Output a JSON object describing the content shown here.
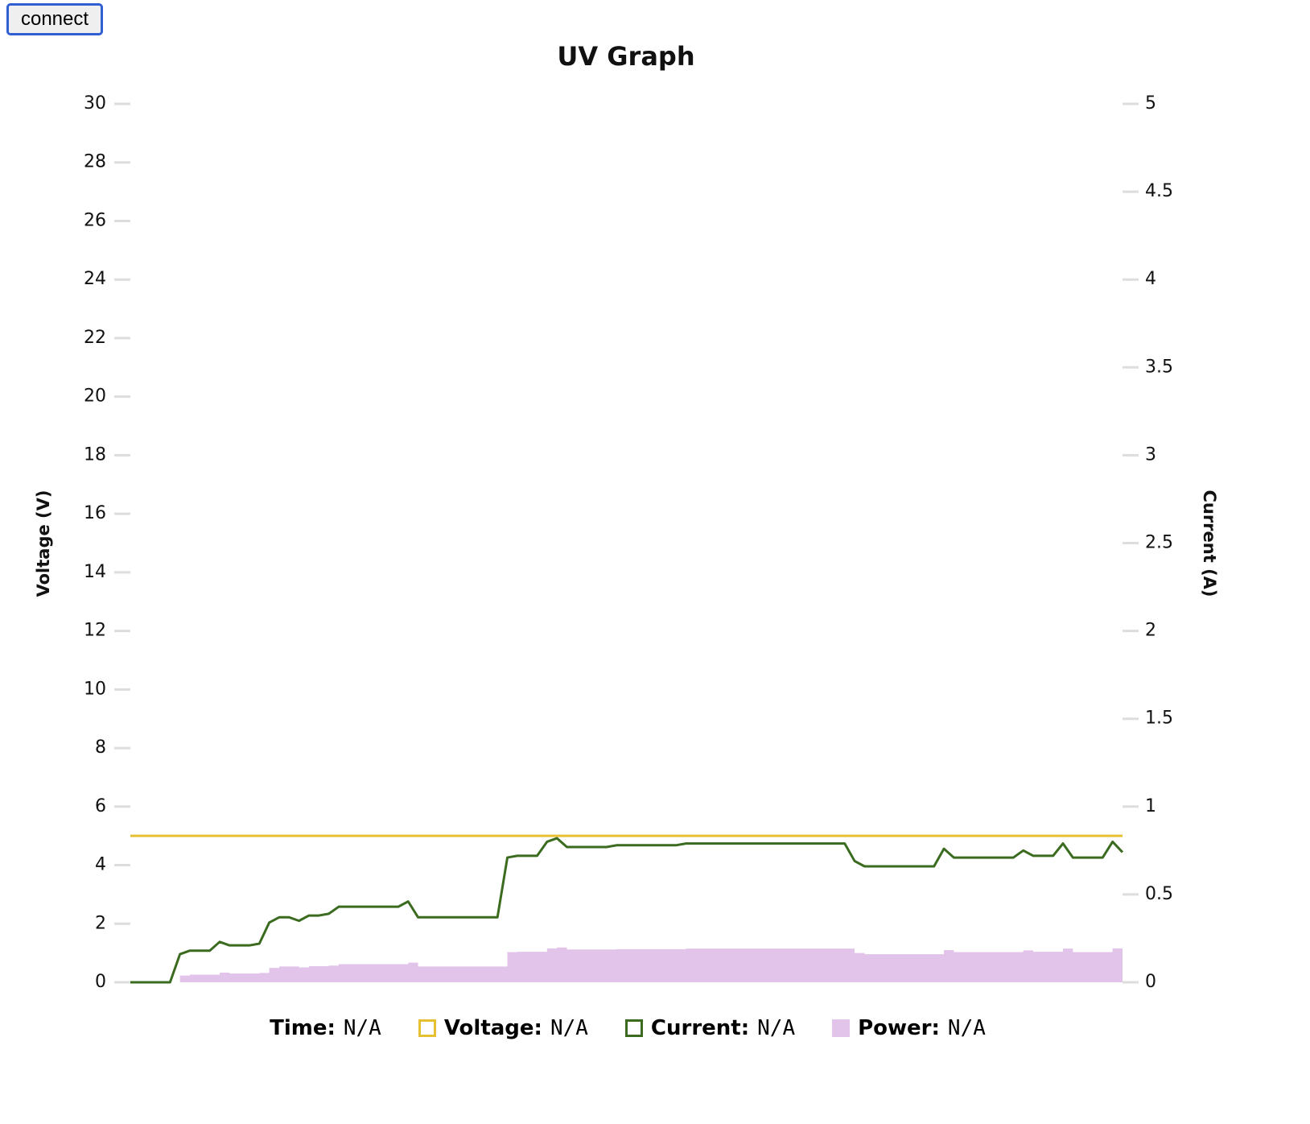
{
  "button": "connect",
  "chart_data": {
    "type": "line",
    "title": "UV Graph",
    "ylabel": "Voltage (V)",
    "y2label": "Current (A)",
    "ylim": [
      0,
      30
    ],
    "yticks": [
      0,
      2,
      4,
      6,
      8,
      10,
      12,
      14,
      16,
      18,
      20,
      22,
      24,
      26,
      28,
      30
    ],
    "y2lim": [
      0,
      5
    ],
    "y2ticks": [
      0,
      0.5,
      1,
      1.5,
      2,
      2.5,
      3,
      3.5,
      4,
      4.5,
      5
    ],
    "time_label": "Time",
    "readouts": [
      "N/A",
      "N/A",
      "N/A",
      "N/A"
    ],
    "series": [
      {
        "name": "Voltage",
        "color": "#e5c033",
        "kind": "line",
        "axis": "y",
        "values": [
          5,
          5,
          5,
          5,
          5,
          5,
          5,
          5,
          5,
          5,
          5,
          5,
          5,
          5,
          5,
          5,
          5,
          5,
          5,
          5,
          5,
          5,
          5,
          5,
          5,
          5,
          5,
          5,
          5,
          5,
          5,
          5,
          5,
          5,
          5,
          5,
          5,
          5,
          5,
          5,
          5,
          5,
          5,
          5,
          5,
          5,
          5,
          5,
          5,
          5,
          5,
          5,
          5,
          5,
          5,
          5,
          5,
          5,
          5,
          5,
          5,
          5,
          5,
          5,
          5,
          5,
          5,
          5,
          5,
          5,
          5,
          5,
          5,
          5,
          5,
          5,
          5,
          5,
          5,
          5,
          5,
          5,
          5,
          5,
          5,
          5,
          5,
          5,
          5,
          5,
          5,
          5,
          5,
          5,
          5,
          5,
          5,
          5,
          5,
          5,
          5
        ]
      },
      {
        "name": "Current",
        "color": "#3a6b1f",
        "kind": "line",
        "axis": "y2",
        "values": [
          0,
          0,
          0,
          0,
          0,
          0.16,
          0.18,
          0.18,
          0.18,
          0.23,
          0.21,
          0.21,
          0.21,
          0.22,
          0.34,
          0.37,
          0.37,
          0.35,
          0.38,
          0.38,
          0.39,
          0.43,
          0.43,
          0.43,
          0.43,
          0.43,
          0.43,
          0.43,
          0.46,
          0.37,
          0.37,
          0.37,
          0.37,
          0.37,
          0.37,
          0.37,
          0.37,
          0.37,
          0.71,
          0.72,
          0.72,
          0.72,
          0.8,
          0.82,
          0.77,
          0.77,
          0.77,
          0.77,
          0.77,
          0.78,
          0.78,
          0.78,
          0.78,
          0.78,
          0.78,
          0.78,
          0.79,
          0.79,
          0.79,
          0.79,
          0.79,
          0.79,
          0.79,
          0.79,
          0.79,
          0.79,
          0.79,
          0.79,
          0.79,
          0.79,
          0.79,
          0.79,
          0.79,
          0.69,
          0.66,
          0.66,
          0.66,
          0.66,
          0.66,
          0.66,
          0.66,
          0.66,
          0.76,
          0.71,
          0.71,
          0.71,
          0.71,
          0.71,
          0.71,
          0.71,
          0.75,
          0.72,
          0.72,
          0.72,
          0.79,
          0.71,
          0.71,
          0.71,
          0.71,
          0.8,
          0.74
        ]
      },
      {
        "name": "Power",
        "color": "#e2c3ea",
        "kind": "area",
        "axis": "y",
        "values": [
          0,
          0,
          0,
          0,
          0,
          0.23,
          0.26,
          0.26,
          0.26,
          0.33,
          0.3,
          0.3,
          0.3,
          0.32,
          0.49,
          0.54,
          0.54,
          0.51,
          0.55,
          0.55,
          0.57,
          0.62,
          0.62,
          0.62,
          0.62,
          0.62,
          0.62,
          0.62,
          0.67,
          0.54,
          0.54,
          0.54,
          0.54,
          0.54,
          0.54,
          0.54,
          0.54,
          0.54,
          1.03,
          1.04,
          1.04,
          1.04,
          1.16,
          1.19,
          1.12,
          1.12,
          1.12,
          1.12,
          1.12,
          1.13,
          1.13,
          1.13,
          1.13,
          1.13,
          1.13,
          1.13,
          1.15,
          1.15,
          1.15,
          1.15,
          1.15,
          1.15,
          1.15,
          1.15,
          1.15,
          1.15,
          1.15,
          1.15,
          1.15,
          1.15,
          1.15,
          1.15,
          1.15,
          1.0,
          0.96,
          0.96,
          0.96,
          0.96,
          0.96,
          0.96,
          0.96,
          0.96,
          1.1,
          1.03,
          1.03,
          1.03,
          1.03,
          1.03,
          1.03,
          1.03,
          1.09,
          1.04,
          1.04,
          1.04,
          1.15,
          1.03,
          1.03,
          1.03,
          1.03,
          1.16,
          1.07
        ]
      }
    ]
  }
}
